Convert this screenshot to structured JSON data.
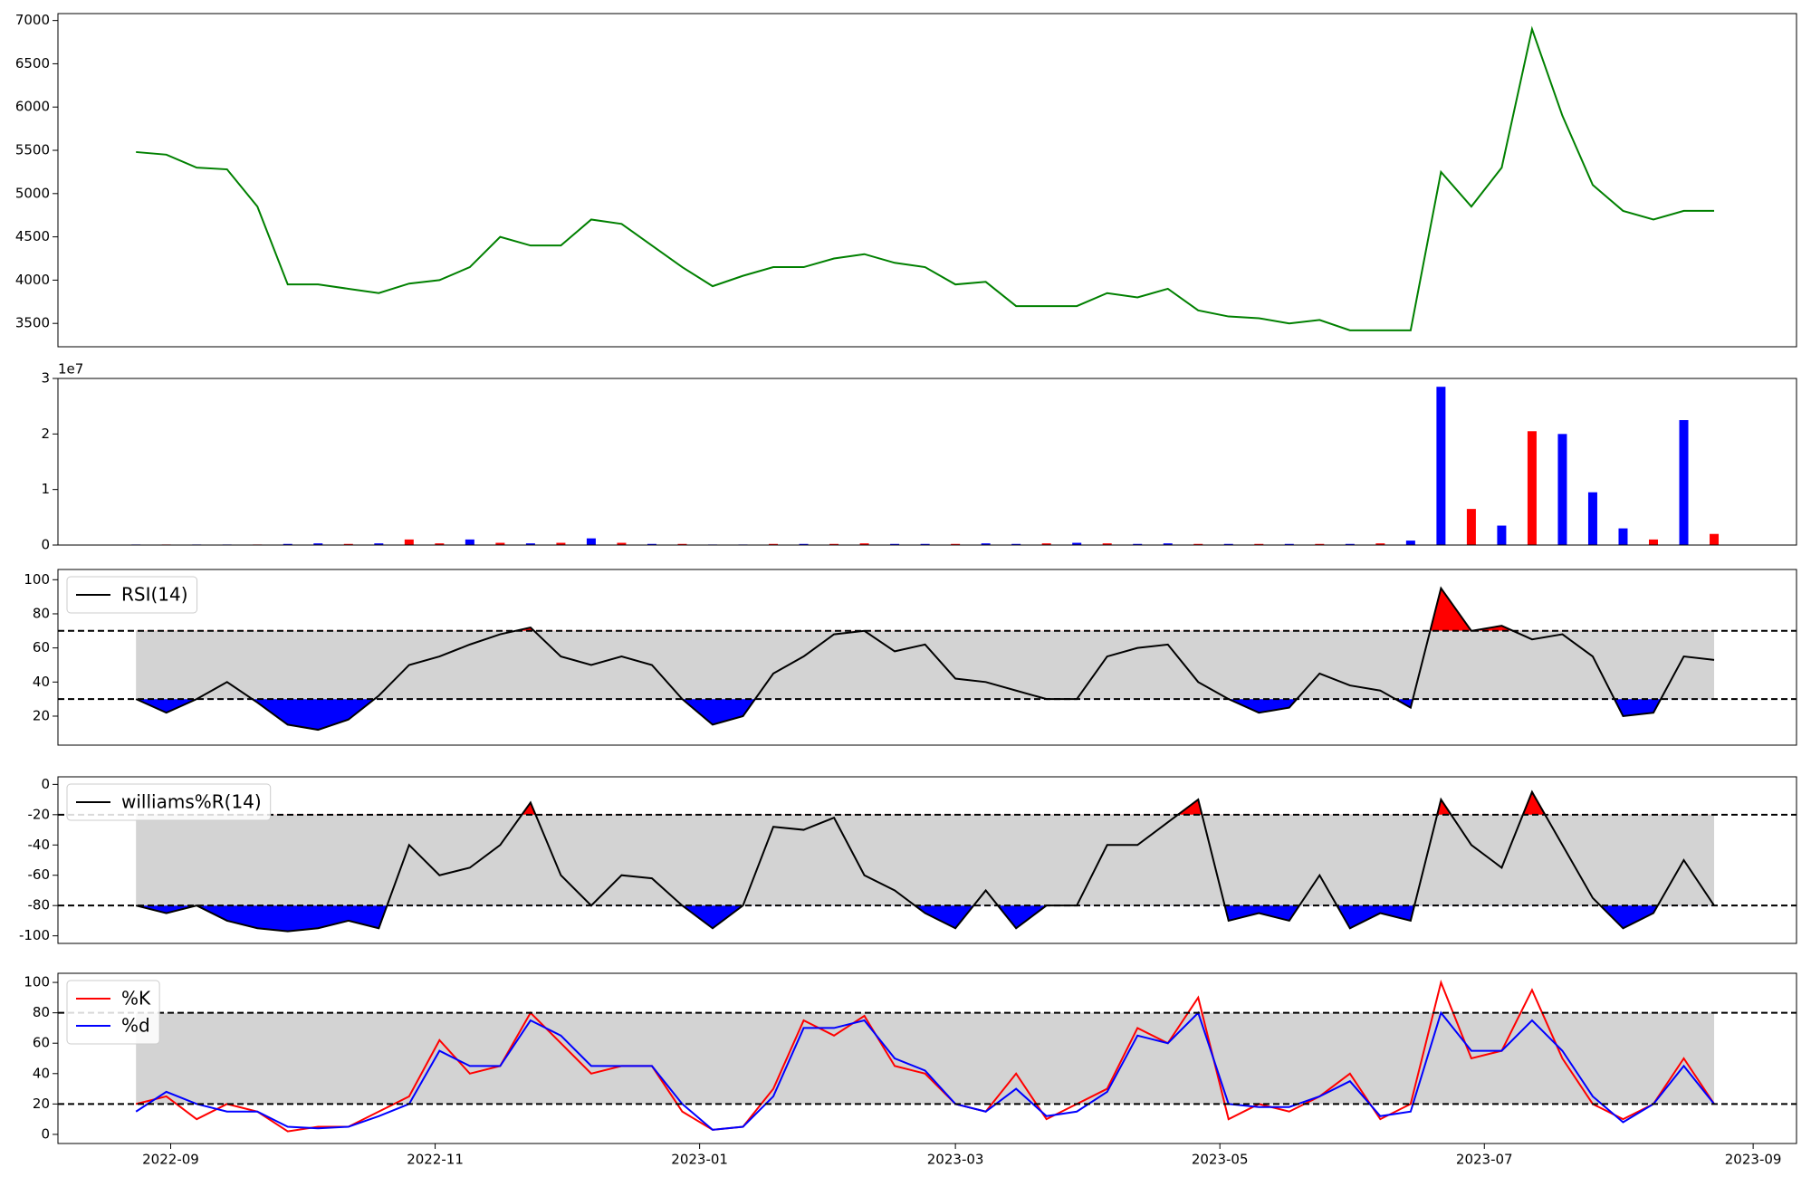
{
  "chart_data": {
    "type": "multi-panel",
    "x": [
      19228,
      19235,
      19242,
      19249,
      19256,
      19263,
      19270,
      19277,
      19284,
      19291,
      19298,
      19305,
      19312,
      19319,
      19326,
      19333,
      19340,
      19347,
      19354,
      19361,
      19368,
      19375,
      19382,
      19389,
      19396,
      19403,
      19410,
      19417,
      19424,
      19431,
      19438,
      19445,
      19452,
      19459,
      19466,
      19473,
      19480,
      19487,
      19494,
      19501,
      19508,
      19515,
      19522,
      19529,
      19536,
      19543,
      19550,
      19557,
      19564,
      19571,
      19578,
      19585,
      19592
    ],
    "xlim": [
      19210,
      19611
    ],
    "xticks": [
      {
        "value": 19236,
        "label": "2022-09"
      },
      {
        "value": 19297,
        "label": "2022-11"
      },
      {
        "value": 19358,
        "label": "2023-01"
      },
      {
        "value": 19417,
        "label": "2023-03"
      },
      {
        "value": 19478,
        "label": "2023-05"
      },
      {
        "value": 19539,
        "label": "2023-07"
      },
      {
        "value": 19601,
        "label": "2023-09"
      }
    ],
    "panels": [
      {
        "type": "line",
        "ylim": [
          3230,
          7080
        ],
        "yticks": [
          3500,
          4000,
          4500,
          5000,
          5500,
          6000,
          6500,
          7000
        ],
        "series": [
          {
            "color": "green",
            "values": [
              5480,
              5450,
              5300,
              5280,
              4850,
              3950,
              3950,
              3900,
              3850,
              3960,
              4000,
              4150,
              4500,
              4400,
              4400,
              4700,
              4650,
              4400,
              4150,
              3930,
              4050,
              4150,
              4150,
              4250,
              4300,
              4200,
              4150,
              3950,
              3980,
              3700,
              3700,
              3700,
              3850,
              3800,
              3900,
              3650,
              3580,
              3560,
              3500,
              3540,
              3420,
              3420,
              3420,
              5250,
              4850,
              5300,
              6900,
              5900,
              5100,
              4800,
              4700,
              4800,
              4800
            ]
          }
        ]
      },
      {
        "type": "bar",
        "ylim": [
          0,
          3
        ],
        "yticks": [
          0,
          1,
          2,
          3
        ],
        "offset_text": "1e7",
        "values": [
          0.01,
          0.01,
          0.01,
          0.01,
          0.01,
          0.02,
          0.03,
          0.02,
          0.03,
          0.1,
          0.03,
          0.1,
          0.04,
          0.03,
          0.04,
          0.12,
          0.04,
          0.02,
          0.02,
          0.01,
          0.01,
          0.02,
          0.02,
          0.02,
          0.03,
          0.02,
          0.02,
          0.02,
          0.03,
          0.02,
          0.03,
          0.04,
          0.03,
          0.02,
          0.03,
          0.02,
          0.02,
          0.02,
          0.02,
          0.02,
          0.02,
          0.03,
          0.08,
          2.85,
          0.65,
          0.35,
          2.05,
          2.0,
          0.95,
          0.3,
          0.1,
          2.25,
          0.2
        ],
        "colors": [
          "blue",
          "red",
          "blue",
          "blue",
          "red",
          "blue",
          "blue",
          "red",
          "blue",
          "red",
          "red",
          "blue",
          "red",
          "blue",
          "red",
          "blue",
          "red",
          "blue",
          "red",
          "blue",
          "blue",
          "red",
          "blue",
          "red",
          "red",
          "blue",
          "blue",
          "red",
          "blue",
          "blue",
          "red",
          "blue",
          "red",
          "blue",
          "blue",
          "red",
          "blue",
          "red",
          "blue",
          "red",
          "blue",
          "red",
          "blue",
          "blue",
          "red",
          "blue",
          "red",
          "blue",
          "blue",
          "blue",
          "red",
          "blue",
          "red"
        ]
      },
      {
        "type": "oscillator",
        "ylim": [
          3,
          106
        ],
        "yticks": [
          20,
          40,
          60,
          80,
          100
        ],
        "hlines": [
          30,
          70
        ],
        "band_color": "lightgray",
        "above_color": "red",
        "below_color": "blue",
        "legend": "upper left",
        "series": [
          {
            "name": "RSI(14)",
            "color": "black",
            "values": [
              30,
              22,
              30,
              40,
              28,
              15,
              12,
              18,
              32,
              50,
              55,
              62,
              68,
              72,
              55,
              50,
              55,
              50,
              30,
              15,
              20,
              45,
              55,
              68,
              70,
              58,
              62,
              42,
              40,
              35,
              30,
              30,
              55,
              60,
              62,
              40,
              30,
              22,
              25,
              45,
              38,
              35,
              25,
              95,
              70,
              73,
              65,
              68,
              55,
              20,
              22,
              55,
              53
            ]
          }
        ]
      },
      {
        "type": "oscillator",
        "ylim": [
          -105,
          5
        ],
        "yticks": [
          -100,
          -80,
          -60,
          -40,
          -20,
          0
        ],
        "hlines": [
          -80,
          -20
        ],
        "band_color": "lightgray",
        "above_color": "red",
        "below_color": "blue",
        "legend": "upper left",
        "series": [
          {
            "name": "williams%R(14)",
            "color": "black",
            "values": [
              -80,
              -85,
              -80,
              -90,
              -95,
              -97,
              -95,
              -90,
              -95,
              -40,
              -60,
              -55,
              -40,
              -12,
              -60,
              -80,
              -60,
              -62,
              -80,
              -95,
              -80,
              -28,
              -30,
              -22,
              -60,
              -70,
              -85,
              -95,
              -70,
              -95,
              -80,
              -80,
              -40,
              -40,
              -25,
              -10,
              -90,
              -85,
              -90,
              -60,
              -95,
              -85,
              -90,
              -10,
              -40,
              -55,
              -5,
              -40,
              -75,
              -95,
              -85,
              -50,
              -80
            ]
          }
        ]
      },
      {
        "type": "oscillator",
        "ylim": [
          -6,
          106
        ],
        "yticks": [
          0,
          20,
          40,
          60,
          80,
          100
        ],
        "hlines": [
          20,
          80
        ],
        "band_color": "lightgray",
        "legend": "upper left",
        "series": [
          {
            "name": "%K",
            "color": "red",
            "values": [
              20,
              25,
              10,
              20,
              15,
              2,
              5,
              5,
              15,
              25,
              62,
              40,
              45,
              80,
              60,
              40,
              45,
              45,
              15,
              3,
              5,
              30,
              75,
              65,
              78,
              45,
              40,
              20,
              15,
              40,
              10,
              20,
              30,
              70,
              60,
              90,
              10,
              20,
              15,
              25,
              40,
              10,
              20,
              100,
              50,
              55,
              95,
              50,
              20,
              10,
              20,
              50,
              20
            ]
          },
          {
            "name": "%d",
            "color": "blue",
            "values": [
              15,
              28,
              20,
              15,
              15,
              5,
              4,
              5,
              12,
              20,
              55,
              45,
              45,
              75,
              65,
              45,
              45,
              45,
              20,
              3,
              5,
              25,
              70,
              70,
              75,
              50,
              42,
              20,
              15,
              30,
              12,
              15,
              28,
              65,
              60,
              80,
              20,
              18,
              18,
              25,
              35,
              12,
              15,
              80,
              55,
              55,
              75,
              55,
              25,
              8,
              20,
              45,
              20
            ]
          }
        ]
      }
    ]
  }
}
